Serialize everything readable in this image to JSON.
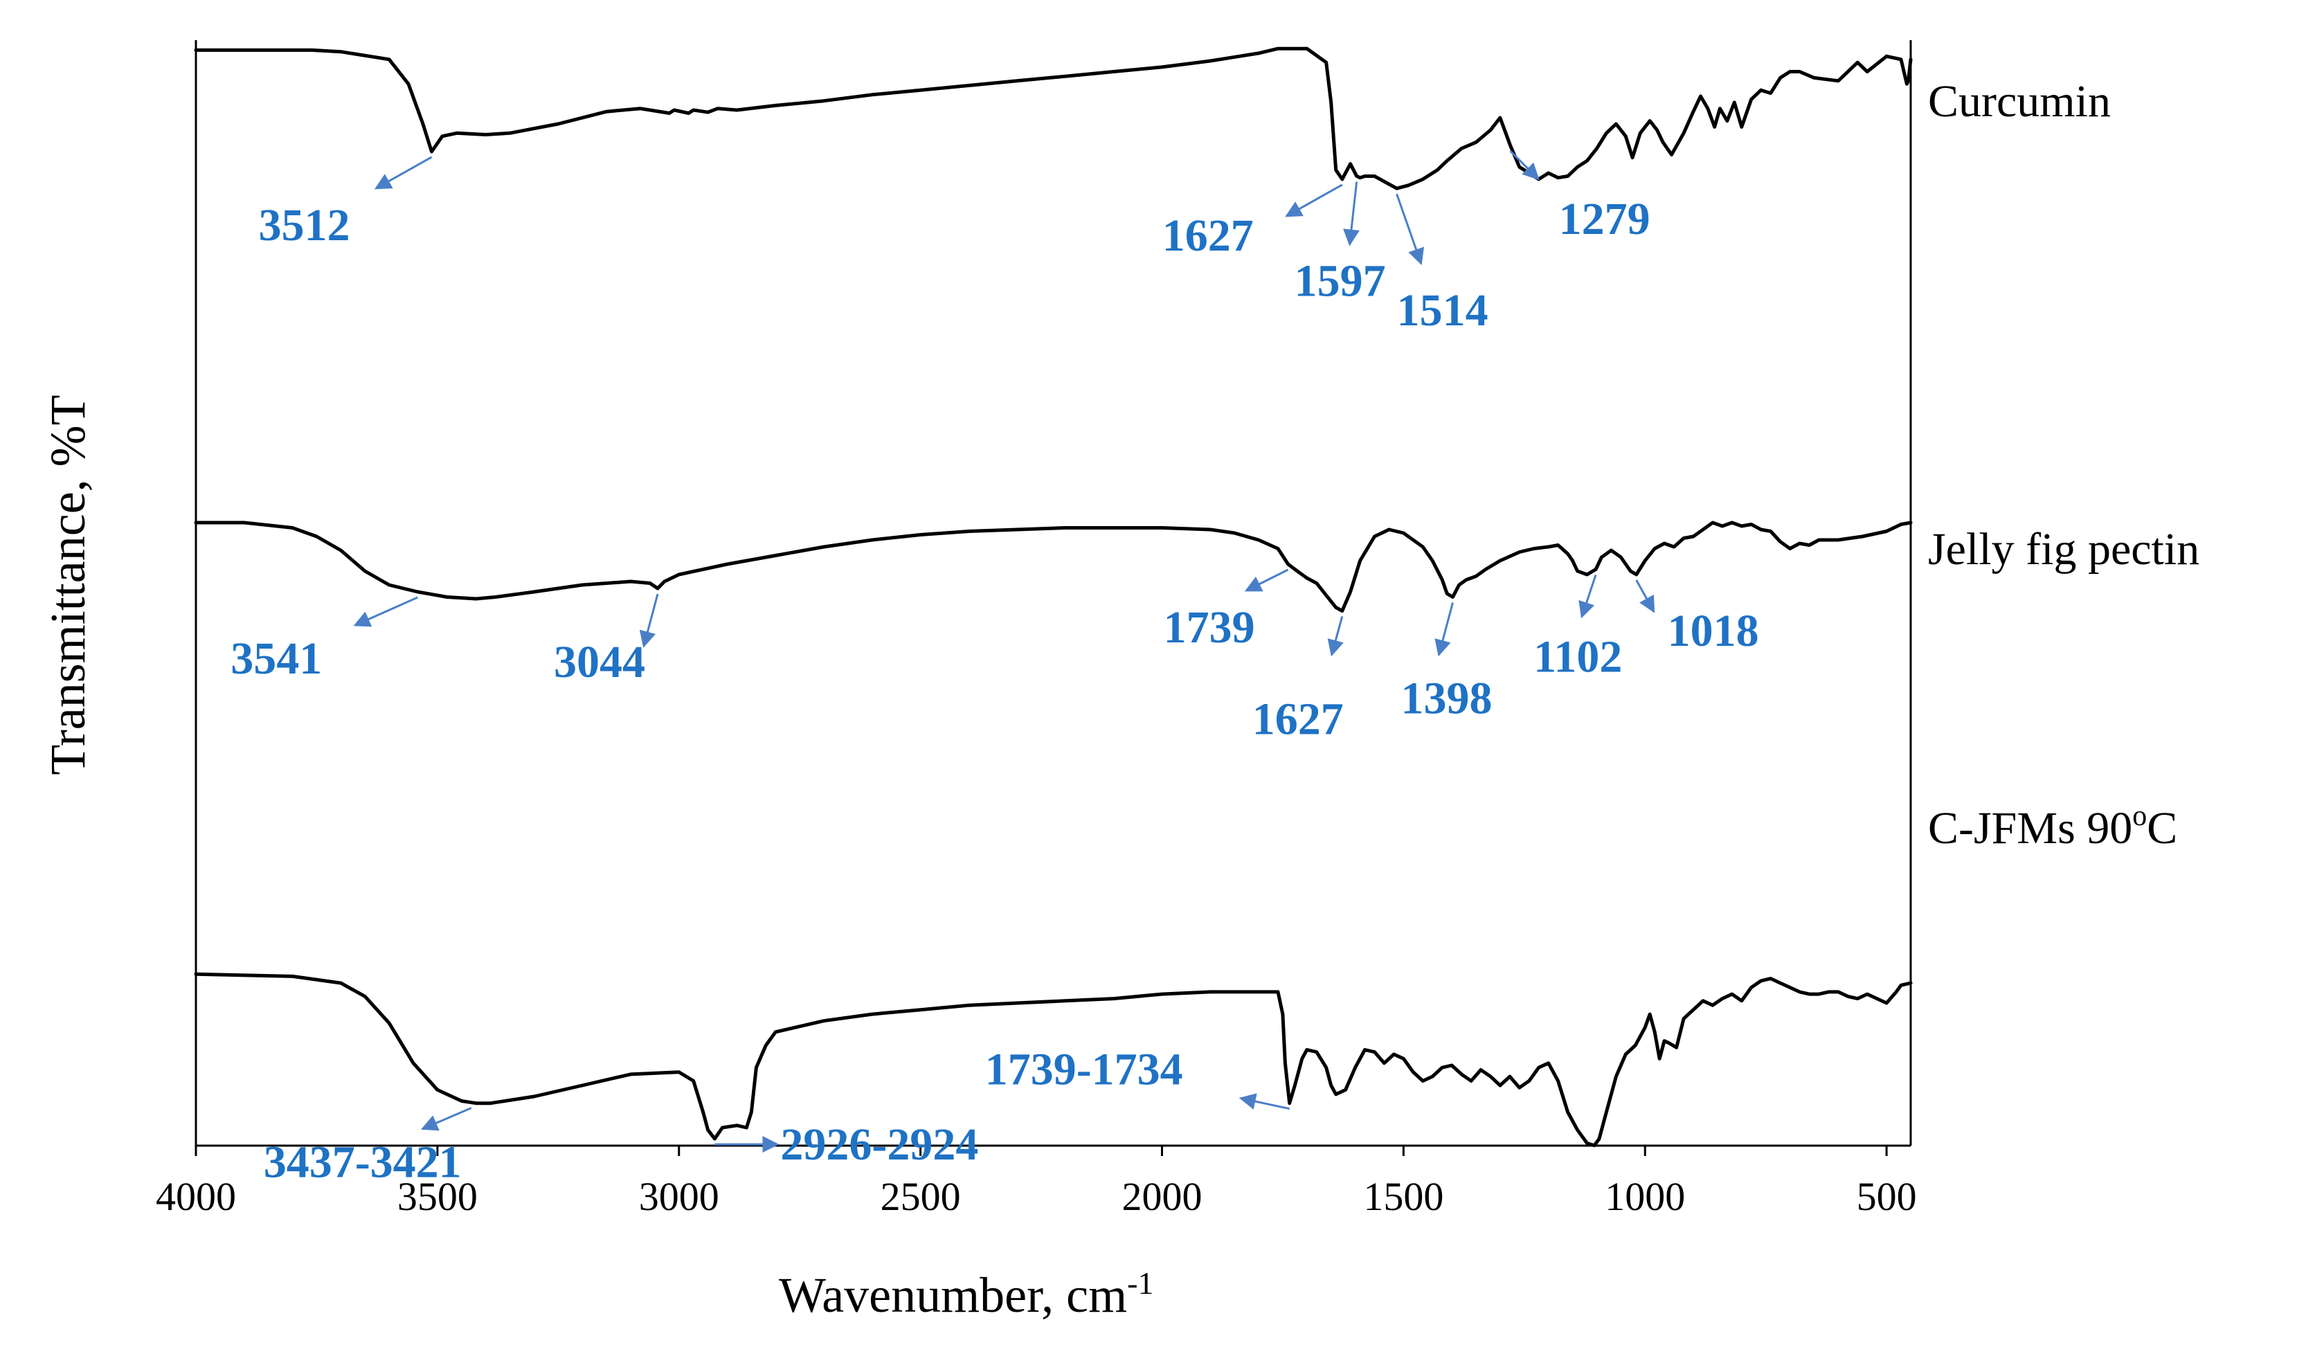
{
  "chart_data": {
    "type": "line",
    "xlabel": "Wavenumber, cm",
    "xlabel_superscript": "-1",
    "ylabel": "Transmittance, %T",
    "xlim": [
      4000,
      450
    ],
    "x_reversed": true,
    "x_ticks": [
      "4000",
      "3500",
      "3000",
      "2500",
      "2000",
      "1500",
      "1000",
      "500"
    ],
    "grid": false,
    "line_color": "#000000",
    "annotation_color": "#1f72c4",
    "series": [
      {
        "name": "Curcumin",
        "x": [
          4000,
          3760,
          3700,
          3600,
          3560,
          3530,
          3512,
          3490,
          3460,
          3400,
          3350,
          3250,
          3150,
          3080,
          3060,
          3020,
          3010,
          2980,
          2970,
          2940,
          2920,
          2880,
          2800,
          2700,
          2600,
          2500,
          2400,
          2300,
          2200,
          2100,
          2000,
          1900,
          1800,
          1760,
          1700,
          1660,
          1650,
          1640,
          1627,
          1610,
          1597,
          1590,
          1580,
          1560,
          1514,
          1490,
          1460,
          1430,
          1410,
          1380,
          1350,
          1320,
          1300,
          1279,
          1260,
          1240,
          1220,
          1200,
          1180,
          1160,
          1140,
          1120,
          1100,
          1080,
          1060,
          1040,
          1026,
          1010,
          990,
          975,
          963,
          945,
          920,
          900,
          885,
          870,
          856,
          845,
          830,
          815,
          800,
          780,
          760,
          740,
          720,
          700,
          680,
          650,
          600,
          560,
          540,
          500,
          470,
          458,
          455,
          450
        ],
        "y": [
          99,
          99,
          98.5,
          96,
          88,
          75,
          66,
          71,
          72,
          71.5,
          72,
          75,
          79,
          80,
          79.5,
          78.5,
          79.5,
          78.5,
          79.5,
          78.8,
          80,
          79.5,
          81,
          82.5,
          84.5,
          86,
          87.5,
          89,
          90.5,
          92,
          93.5,
          95.5,
          98,
          99.5,
          99.5,
          95,
          82,
          60,
          57,
          62,
          58,
          57.5,
          58,
          58,
          54,
          55,
          57,
          60,
          63,
          67,
          69,
          73,
          77,
          68,
          61,
          59,
          57,
          59,
          57.5,
          58,
          61,
          63,
          67,
          72,
          75,
          71,
          64,
          72,
          76,
          73,
          69,
          65,
          72,
          79,
          84,
          80,
          74,
          80,
          76,
          82,
          74,
          83,
          86,
          85,
          90,
          92,
          92,
          90,
          89,
          95,
          92,
          97,
          96,
          88,
          89,
          96
        ]
      },
      {
        "name": "Jelly fig pectin",
        "x": [
          4000,
          3900,
          3800,
          3750,
          3700,
          3650,
          3600,
          3541,
          3480,
          3420,
          3380,
          3300,
          3200,
          3100,
          3060,
          3044,
          3030,
          3000,
          2900,
          2800,
          2700,
          2600,
          2500,
          2400,
          2300,
          2200,
          2100,
          2000,
          1900,
          1850,
          1800,
          1760,
          1739,
          1720,
          1700,
          1680,
          1660,
          1640,
          1627,
          1610,
          1590,
          1560,
          1530,
          1500,
          1480,
          1460,
          1440,
          1420,
          1410,
          1398,
          1385,
          1370,
          1350,
          1330,
          1300,
          1260,
          1230,
          1200,
          1180,
          1160,
          1150,
          1140,
          1120,
          1102,
          1090,
          1070,
          1050,
          1030,
          1018,
          1000,
          980,
          960,
          940,
          920,
          900,
          880,
          860,
          840,
          820,
          800,
          780,
          760,
          740,
          720,
          700,
          680,
          660,
          640,
          600,
          550,
          500,
          470,
          450
        ],
        "y": [
          78,
          78,
          76.5,
          74,
          70,
          64,
          60,
          58,
          56.5,
          56,
          56.5,
          58,
          60,
          61,
          60.5,
          59,
          61,
          63,
          66,
          68.5,
          71,
          73,
          74.5,
          75.5,
          76,
          76.5,
          76.5,
          76.5,
          76,
          75,
          73,
          70.5,
          66,
          64,
          62,
          60.5,
          57,
          53.5,
          52.5,
          58,
          67,
          74,
          76,
          75,
          73,
          71,
          67,
          61.5,
          57.5,
          56.5,
          60,
          61.5,
          62.5,
          64.5,
          67,
          69.5,
          70.5,
          71,
          71.5,
          69,
          67,
          64,
          63,
          64.5,
          68,
          70,
          68,
          64,
          63,
          67,
          70.5,
          72,
          71,
          73.5,
          74,
          76,
          78,
          77,
          78,
          77,
          77.5,
          76,
          75.5,
          72.5,
          70.5,
          72,
          71.5,
          73,
          73,
          74,
          75.5,
          77.5,
          78
        ]
      },
      {
        "name": "C-JFMs 90°C",
        "x": [
          4000,
          3800,
          3700,
          3650,
          3600,
          3550,
          3500,
          3450,
          3420,
          3390,
          3300,
          3200,
          3100,
          3000,
          2970,
          2950,
          2940,
          2926,
          2910,
          2880,
          2860,
          2850,
          2840,
          2820,
          2800,
          2700,
          2600,
          2500,
          2400,
          2300,
          2200,
          2100,
          2000,
          1900,
          1800,
          1760,
          1750,
          1745,
          1736,
          1725,
          1710,
          1700,
          1680,
          1660,
          1650,
          1640,
          1620,
          1600,
          1580,
          1560,
          1540,
          1520,
          1500,
          1480,
          1460,
          1440,
          1420,
          1400,
          1380,
          1360,
          1340,
          1320,
          1300,
          1280,
          1260,
          1240,
          1220,
          1200,
          1180,
          1160,
          1140,
          1120,
          1105,
          1095,
          1080,
          1060,
          1040,
          1020,
          1000,
          990,
          980,
          970,
          960,
          950,
          935,
          920,
          900,
          880,
          860,
          840,
          820,
          800,
          780,
          760,
          740,
          720,
          700,
          680,
          660,
          640,
          620,
          600,
          580,
          560,
          540,
          520,
          500,
          480,
          470,
          450
        ],
        "y": [
          53,
          52.5,
          51,
          48,
          42,
          33,
          27,
          24.5,
          24,
          24,
          25.5,
          28,
          30.5,
          31,
          29,
          22,
          18,
          16,
          18.5,
          19,
          18.5,
          22,
          32,
          37,
          40,
          42.5,
          44,
          45,
          46,
          46.5,
          47,
          47.5,
          48.5,
          49,
          49,
          49,
          44,
          33,
          24,
          28,
          34,
          36,
          35.5,
          32,
          28,
          26,
          27,
          32,
          36,
          35.5,
          33,
          35,
          34,
          31,
          29,
          30,
          32,
          32.5,
          30.5,
          29,
          31.5,
          30,
          28,
          30,
          27.5,
          29,
          32,
          33,
          29,
          22,
          18,
          15,
          14.5,
          16,
          22,
          30,
          35,
          37,
          41,
          44,
          40,
          34,
          38,
          37.5,
          36.5,
          43,
          45,
          47,
          46,
          47.5,
          48.5,
          47,
          50,
          51.5,
          52,
          51,
          50,
          49,
          48.5,
          48.5,
          49,
          49,
          48,
          47.5,
          48.5,
          47.5,
          46.5,
          49,
          50.5,
          51
        ]
      }
    ],
    "series_labels": [
      {
        "text": "Curcumin",
        "superscript": "",
        "suffix": ""
      },
      {
        "text": "Jelly fig pectin",
        "superscript": "",
        "suffix": ""
      },
      {
        "text": "C-JFMs 90",
        "superscript": "o",
        "suffix": "C"
      }
    ],
    "annotations": [
      {
        "label": "3512",
        "series": 0,
        "x": 3512
      },
      {
        "label": "1627",
        "series": 0,
        "x": 1627
      },
      {
        "label": "1597",
        "series": 0,
        "x": 1597
      },
      {
        "label": "1514",
        "series": 0,
        "x": 1514
      },
      {
        "label": "1279",
        "series": 0,
        "x": 1279
      },
      {
        "label": "3541",
        "series": 1,
        "x": 3541
      },
      {
        "label": "3044",
        "series": 1,
        "x": 3044
      },
      {
        "label": "1739",
        "series": 1,
        "x": 1739
      },
      {
        "label": "1627",
        "series": 1,
        "x": 1627
      },
      {
        "label": "1398",
        "series": 1,
        "x": 1398
      },
      {
        "label": "1102",
        "series": 1,
        "x": 1102
      },
      {
        "label": "1018",
        "series": 1,
        "x": 1018
      },
      {
        "label": "3437-3421",
        "series": 2,
        "x": 3430
      },
      {
        "label": "2926-2924",
        "series": 2,
        "x": 2926
      },
      {
        "label": "1739-1734",
        "series": 2,
        "x": 1736
      }
    ]
  }
}
